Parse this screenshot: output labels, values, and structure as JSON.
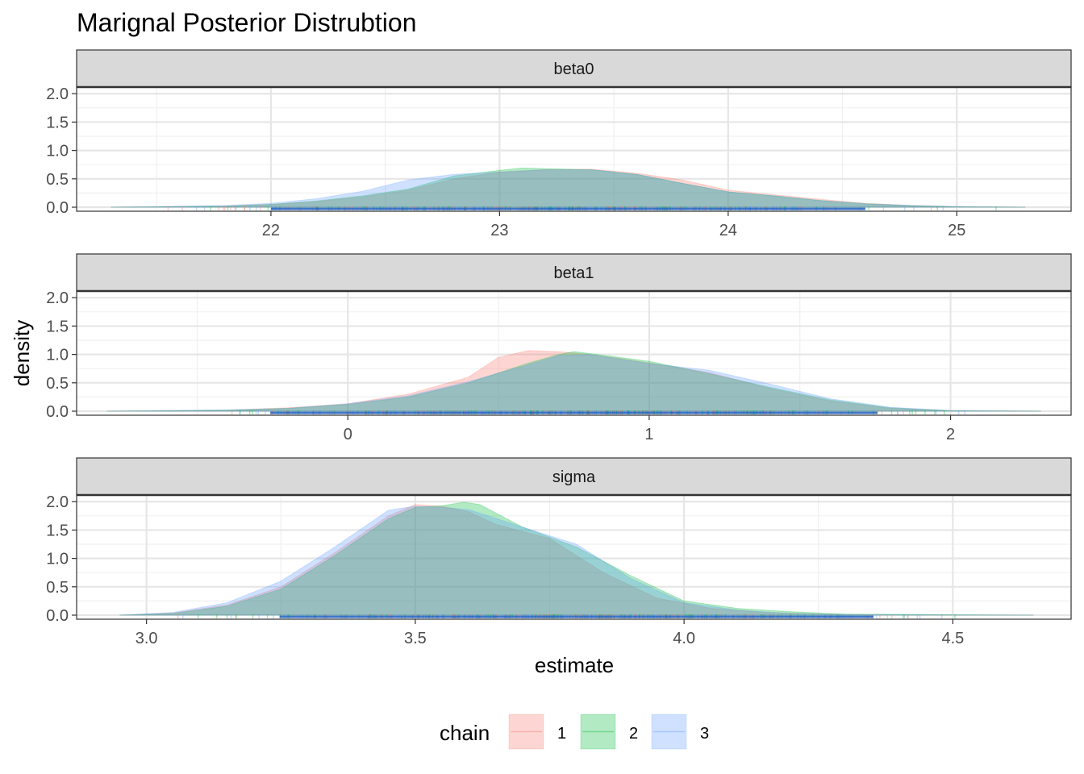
{
  "title": "Marignal Posterior Distrubtion",
  "chart_data": {
    "type": "area",
    "subtype": "faceted density with rug",
    "xlabel": "estimate",
    "ylabel": "density",
    "legend": {
      "title": "chain",
      "position": "bottom"
    },
    "grid": true,
    "theme": "black-and-white",
    "series_colors": {
      "1": "#F8766D",
      "2": "#00BA38",
      "3": "#619CFF"
    },
    "overlap_color": "#8aa7b0",
    "rug_color": "#1f5fbf",
    "series": [
      {
        "name": "1"
      },
      {
        "name": "2"
      },
      {
        "name": "3"
      }
    ],
    "facets": [
      {
        "label": "beta0",
        "xlim": [
          21.15,
          25.5
        ],
        "ylim": [
          0,
          2.0
        ],
        "xticks": [
          22,
          23,
          24,
          25
        ],
        "xtick_labels": [
          "22",
          "23",
          "24",
          "25"
        ],
        "yticks": [
          0,
          0.5,
          1.0,
          1.5,
          2.0
        ],
        "ytick_labels": [
          "0.0",
          "0.5",
          "1.0",
          "1.5",
          "2.0"
        ],
        "rug_range": [
          21.3,
          25.3
        ],
        "series": [
          {
            "name": "1",
            "x": [
              21.3,
              21.8,
              22.0,
              22.2,
              22.4,
              22.6,
              22.8,
              23.0,
              23.2,
              23.4,
              23.6,
              23.8,
              24.0,
              24.2,
              24.4,
              24.6,
              24.8,
              25.0,
              25.3
            ],
            "y": [
              0.0,
              0.02,
              0.05,
              0.1,
              0.18,
              0.3,
              0.5,
              0.62,
              0.66,
              0.67,
              0.6,
              0.48,
              0.3,
              0.22,
              0.14,
              0.07,
              0.03,
              0.01,
              0.0
            ]
          },
          {
            "name": "2",
            "x": [
              21.3,
              21.8,
              22.0,
              22.2,
              22.4,
              22.6,
              22.8,
              23.0,
              23.1,
              23.2,
              23.4,
              23.6,
              23.8,
              24.0,
              24.2,
              24.4,
              24.6,
              24.8,
              25.0,
              25.3
            ],
            "y": [
              0.0,
              0.02,
              0.05,
              0.11,
              0.2,
              0.32,
              0.55,
              0.65,
              0.69,
              0.68,
              0.66,
              0.58,
              0.42,
              0.27,
              0.2,
              0.12,
              0.06,
              0.03,
              0.01,
              0.0
            ]
          },
          {
            "name": "3",
            "x": [
              21.3,
              21.8,
              22.0,
              22.2,
              22.4,
              22.6,
              22.8,
              23.0,
              23.2,
              23.4,
              23.6,
              23.8,
              24.0,
              24.2,
              24.4,
              24.6,
              24.8,
              25.0,
              25.3
            ],
            "y": [
              0.0,
              0.03,
              0.07,
              0.15,
              0.28,
              0.48,
              0.58,
              0.62,
              0.66,
              0.66,
              0.58,
              0.42,
              0.27,
              0.2,
              0.12,
              0.06,
              0.03,
              0.01,
              0.0
            ]
          }
        ]
      },
      {
        "label": "beta1",
        "xlim": [
          -0.9,
          2.4
        ],
        "ylim": [
          0,
          2.0
        ],
        "xticks": [
          0,
          1,
          2
        ],
        "xtick_labels": [
          "0",
          "1",
          "2"
        ],
        "yticks": [
          0,
          0.5,
          1.0,
          1.5,
          2.0
        ],
        "ytick_labels": [
          "0.0",
          "0.5",
          "1.0",
          "1.5",
          "2.0"
        ],
        "rug_range": [
          -0.8,
          2.3
        ],
        "series": [
          {
            "name": "1",
            "x": [
              -0.8,
              -0.4,
              -0.2,
              0.0,
              0.2,
              0.4,
              0.5,
              0.6,
              0.7,
              0.8,
              0.9,
              1.0,
              1.2,
              1.4,
              1.6,
              1.8,
              2.0,
              2.3
            ],
            "y": [
              0.0,
              0.02,
              0.06,
              0.13,
              0.3,
              0.6,
              0.95,
              1.07,
              1.05,
              1.0,
              0.93,
              0.85,
              0.68,
              0.4,
              0.18,
              0.05,
              0.01,
              0.0
            ]
          },
          {
            "name": "2",
            "x": [
              -0.8,
              -0.4,
              -0.2,
              0.0,
              0.2,
              0.4,
              0.6,
              0.7,
              0.75,
              0.8,
              1.0,
              1.2,
              1.4,
              1.6,
              1.8,
              2.0,
              2.3
            ],
            "y": [
              0.0,
              0.02,
              0.05,
              0.12,
              0.25,
              0.5,
              0.85,
              1.0,
              1.05,
              1.02,
              0.88,
              0.66,
              0.42,
              0.2,
              0.06,
              0.01,
              0.0
            ]
          },
          {
            "name": "3",
            "x": [
              -0.8,
              -0.4,
              -0.2,
              0.0,
              0.2,
              0.4,
              0.6,
              0.7,
              0.8,
              1.0,
              1.2,
              1.4,
              1.6,
              1.8,
              2.0,
              2.3
            ],
            "y": [
              0.0,
              0.02,
              0.05,
              0.13,
              0.27,
              0.52,
              0.82,
              0.98,
              1.0,
              0.84,
              0.72,
              0.48,
              0.22,
              0.07,
              0.01,
              0.0
            ]
          }
        ]
      },
      {
        "label": "sigma",
        "xlim": [
          2.87,
          4.72
        ],
        "ylim": [
          0,
          2.0
        ],
        "xticks": [
          3.0,
          3.5,
          4.0,
          4.5
        ],
        "xtick_labels": [
          "3.0",
          "3.5",
          "4.0",
          "4.5"
        ],
        "yticks": [
          0,
          0.5,
          1.0,
          1.5,
          2.0
        ],
        "ytick_labels": [
          "0.0",
          "0.5",
          "1.0",
          "1.5",
          "2.0"
        ],
        "rug_range": [
          2.95,
          4.65
        ],
        "series": [
          {
            "name": "1",
            "x": [
              2.95,
              3.05,
              3.15,
              3.25,
              3.35,
              3.45,
              3.5,
              3.55,
              3.6,
              3.65,
              3.75,
              3.85,
              3.95,
              4.05,
              4.15,
              4.25,
              4.35,
              4.65
            ],
            "y": [
              0.0,
              0.04,
              0.18,
              0.5,
              1.1,
              1.75,
              1.95,
              1.92,
              1.82,
              1.6,
              1.35,
              0.75,
              0.3,
              0.12,
              0.05,
              0.02,
              0.005,
              0.0
            ]
          },
          {
            "name": "2",
            "x": [
              2.95,
              3.05,
              3.15,
              3.25,
              3.35,
              3.45,
              3.5,
              3.55,
              3.59,
              3.62,
              3.7,
              3.8,
              3.9,
              4.0,
              4.1,
              4.2,
              4.3,
              4.65
            ],
            "y": [
              0.0,
              0.03,
              0.16,
              0.46,
              1.05,
              1.7,
              1.9,
              1.93,
              1.99,
              1.95,
              1.55,
              1.2,
              0.7,
              0.25,
              0.12,
              0.06,
              0.02,
              0.0
            ]
          },
          {
            "name": "3",
            "x": [
              2.95,
              3.05,
              3.15,
              3.25,
              3.35,
              3.45,
              3.5,
              3.55,
              3.6,
              3.7,
              3.8,
              3.9,
              4.0,
              4.1,
              4.2,
              4.3,
              4.65
            ],
            "y": [
              0.0,
              0.05,
              0.22,
              0.6,
              1.2,
              1.85,
              1.92,
              1.9,
              1.86,
              1.55,
              1.25,
              0.65,
              0.22,
              0.09,
              0.03,
              0.01,
              0.0
            ]
          }
        ]
      }
    ]
  }
}
